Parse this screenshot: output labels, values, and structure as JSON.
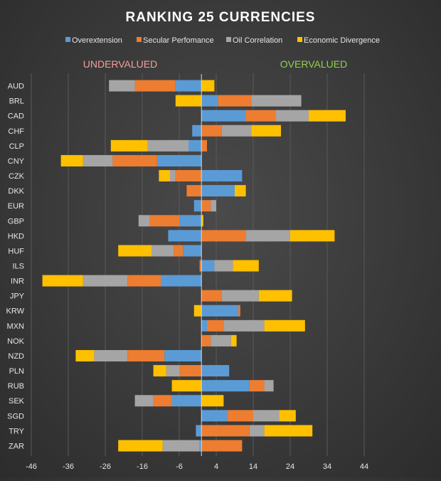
{
  "chart_data": {
    "type": "bar",
    "orientation": "horizontal",
    "stacked": true,
    "title": "RANKING  25 CURRENCIES",
    "legend": {
      "position": "top",
      "entries": [
        "Overextension",
        "Secular Perfomance",
        "Oil Correlation",
        "Economic Divergence"
      ]
    },
    "annotations": [
      {
        "text": "UNDERVALUED",
        "color": "#F4A09A"
      },
      {
        "text": "OVERVALUED",
        "color": "#92D050"
      }
    ],
    "xlim": [
      -46,
      54
    ],
    "x_ticks": [
      -46,
      -36,
      -26,
      -16,
      -6,
      4,
      14,
      24,
      34,
      44
    ],
    "grid": true,
    "colors": {
      "Overextension": "#5B9BD5",
      "Secular Perfomance": "#ED7D31",
      "Oil Correlation": "#A5A5A5",
      "Economic Divergence": "#FFC000"
    },
    "categories": [
      "AUD",
      "BRL",
      "CAD",
      "CHF",
      "CLP",
      "CNY",
      "CZK",
      "DKK",
      "EUR",
      "GBP",
      "HKD",
      "HUF",
      "ILS",
      "INR",
      "JPY",
      "KRW",
      "MXN",
      "NOK",
      "NZD",
      "PLN",
      "RUB",
      "SEK",
      "SGD",
      "TRY",
      "ZAR"
    ],
    "series": [
      {
        "name": "Overextension",
        "values": [
          -7,
          4.5,
          12,
          -2.5,
          -3.5,
          -12,
          11,
          9,
          -2,
          -6,
          -9,
          -5,
          3.5,
          -11,
          0,
          10,
          1.5,
          0,
          -10,
          7.5,
          13,
          -8,
          7,
          -1.5,
          -0.5
        ]
      },
      {
        "name": "Secular Perfomance",
        "values": [
          -11,
          9,
          8,
          5.5,
          1.5,
          -12,
          -7,
          -4,
          2.5,
          -8,
          12,
          -2.5,
          -0.5,
          -9,
          5.5,
          0.5,
          4.5,
          2.5,
          -10,
          -6,
          4,
          -5,
          7,
          13,
          11
        ]
      },
      {
        "name": "Oil Correlation",
        "values": [
          -7,
          13.5,
          9,
          8,
          -11,
          -8,
          -1.5,
          0,
          1.5,
          -3,
          12,
          -6,
          5,
          -12,
          10,
          0,
          11,
          5.5,
          -9,
          -3.5,
          2.5,
          -5,
          7,
          4,
          -10
        ]
      },
      {
        "name": "Economic Divergence",
        "values": [
          3.5,
          -7,
          10,
          8,
          -10,
          -6,
          -3,
          3,
          0,
          0.5,
          12,
          -9,
          7,
          -11,
          9,
          -2,
          11,
          1.5,
          -5,
          -3.5,
          -8,
          6,
          4.5,
          13,
          -12
        ]
      }
    ]
  }
}
